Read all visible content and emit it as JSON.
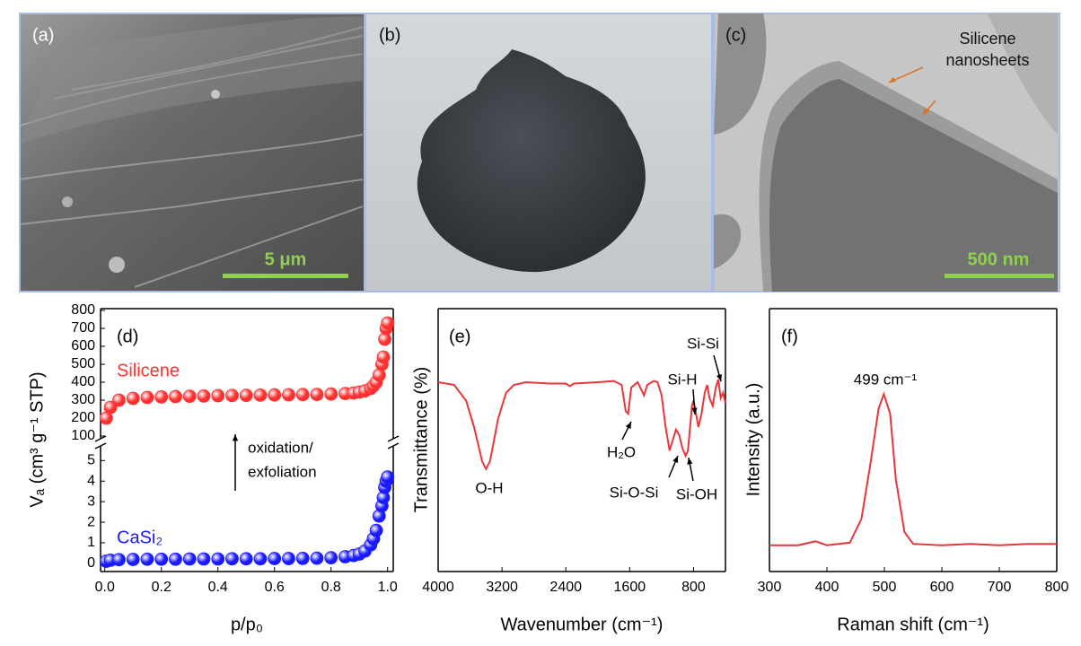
{
  "panels": [
    {
      "label": "(a)",
      "scale_bar": "5 μm"
    },
    {
      "label": "(b)"
    },
    {
      "label": "(c)",
      "annotation_lines": [
        "Silicene",
        "nanosheets"
      ],
      "scale_bar": "500 nm"
    }
  ],
  "chart_data": [
    {
      "type": "scatter",
      "label": "(d)",
      "xlabel": "p/p₀",
      "ylabel": "Vₐ (cm³ g⁻¹ STP)",
      "annotation_lines": [
        "oxidation/",
        "exfoliation"
      ],
      "xlim": [
        -0.015,
        1.02
      ],
      "xticks": [
        {
          "value": 0,
          "label": "0.0"
        },
        0.2,
        0.4,
        0.6,
        0.8,
        {
          "value": 1,
          "label": "1.0"
        }
      ],
      "ylim": [
        -0.4,
        5.8
      ],
      "yticks": [
        0,
        1,
        2,
        3,
        4,
        5
      ],
      "y2lim": [
        75,
        810
      ],
      "y2ticks": [
        100,
        200,
        300,
        400,
        500,
        600,
        700,
        800
      ],
      "x": [
        0.005,
        0.02,
        0.05,
        0.1,
        0.15,
        0.2,
        0.25,
        0.3,
        0.35,
        0.4,
        0.45,
        0.5,
        0.55,
        0.6,
        0.65,
        0.7,
        0.75,
        0.8,
        0.85,
        0.88,
        0.9,
        0.92,
        0.94,
        0.95,
        0.96,
        0.97,
        0.98,
        0.985,
        0.99,
        0.995,
        1.0
      ],
      "series": [
        {
          "name": "Silicene",
          "color": "#ff3030",
          "axis": "y2",
          "values": [
            200,
            260,
            300,
            310,
            315,
            318,
            320,
            322,
            323,
            325,
            326,
            327,
            328,
            329,
            330,
            331,
            332,
            334,
            337,
            340,
            345,
            352,
            365,
            380,
            400,
            440,
            500,
            540,
            640,
            700,
            730
          ]
        },
        {
          "name": "CaSi₂",
          "color": "#1a1aff",
          "values": [
            0.1,
            0.15,
            0.18,
            0.19,
            0.2,
            0.2,
            0.2,
            0.21,
            0.21,
            0.21,
            0.22,
            0.22,
            0.22,
            0.23,
            0.23,
            0.24,
            0.25,
            0.27,
            0.32,
            0.38,
            0.45,
            0.6,
            0.9,
            1.2,
            1.6,
            2.3,
            2.8,
            3.2,
            3.7,
            4.0,
            4.2
          ]
        }
      ]
    },
    {
      "type": "line",
      "label": "(e)",
      "xlabel": "Wavenumber (cm⁻¹)",
      "ylabel": "Transmittance (%)",
      "annotations": [
        "O-H",
        "H₂O",
        "Si-O-Si",
        "Si-OH",
        "Si-H",
        "Si-Si"
      ],
      "xlim": [
        4000,
        400
      ],
      "xticks": [
        4000,
        3200,
        2400,
        1600,
        800
      ],
      "ylim": [
        0,
        100
      ],
      "color": "#e8363a",
      "x": [
        4000,
        3800,
        3650,
        3550,
        3450,
        3400,
        3350,
        3250,
        3150,
        3050,
        2900,
        2600,
        2400,
        2350,
        2300,
        2000,
        1800,
        1700,
        1650,
        1620,
        1580,
        1500,
        1420,
        1380,
        1300,
        1250,
        1200,
        1150,
        1100,
        1060,
        1020,
        980,
        940,
        900,
        870,
        840,
        820,
        800,
        780,
        740,
        700,
        660,
        630,
        600,
        560,
        520,
        490,
        460,
        430,
        400
      ],
      "values": [
        72,
        71,
        65,
        55,
        42,
        39,
        42,
        58,
        68,
        71,
        72,
        71.5,
        71.5,
        70.5,
        71.5,
        72,
        72.5,
        71,
        61,
        60,
        70,
        72,
        67,
        71,
        72.5,
        72,
        67,
        55,
        46,
        50,
        54,
        52,
        47,
        44,
        46,
        56,
        63,
        65,
        62,
        55,
        60,
        68,
        71,
        66,
        63,
        70,
        73,
        66,
        68,
        64
      ]
    },
    {
      "type": "line",
      "label": "(f)",
      "xlabel": "Raman shift (cm⁻¹)",
      "ylabel": "Intensity (a.u.)",
      "annotations": [
        "499 cm⁻¹"
      ],
      "xlim": [
        300,
        800
      ],
      "xticks": [
        300,
        400,
        500,
        600,
        700,
        800
      ],
      "ylim": [
        0,
        100
      ],
      "color": "#e8363a",
      "x": [
        300,
        350,
        380,
        400,
        440,
        460,
        475,
        490,
        499,
        510,
        520,
        535,
        550,
        600,
        650,
        700,
        750,
        800
      ],
      "values": [
        10,
        10,
        11.5,
        10,
        11,
        20,
        40,
        62,
        67.5,
        60,
        35,
        15,
        10.5,
        10,
        10.5,
        10,
        10.5,
        10.5
      ]
    }
  ]
}
